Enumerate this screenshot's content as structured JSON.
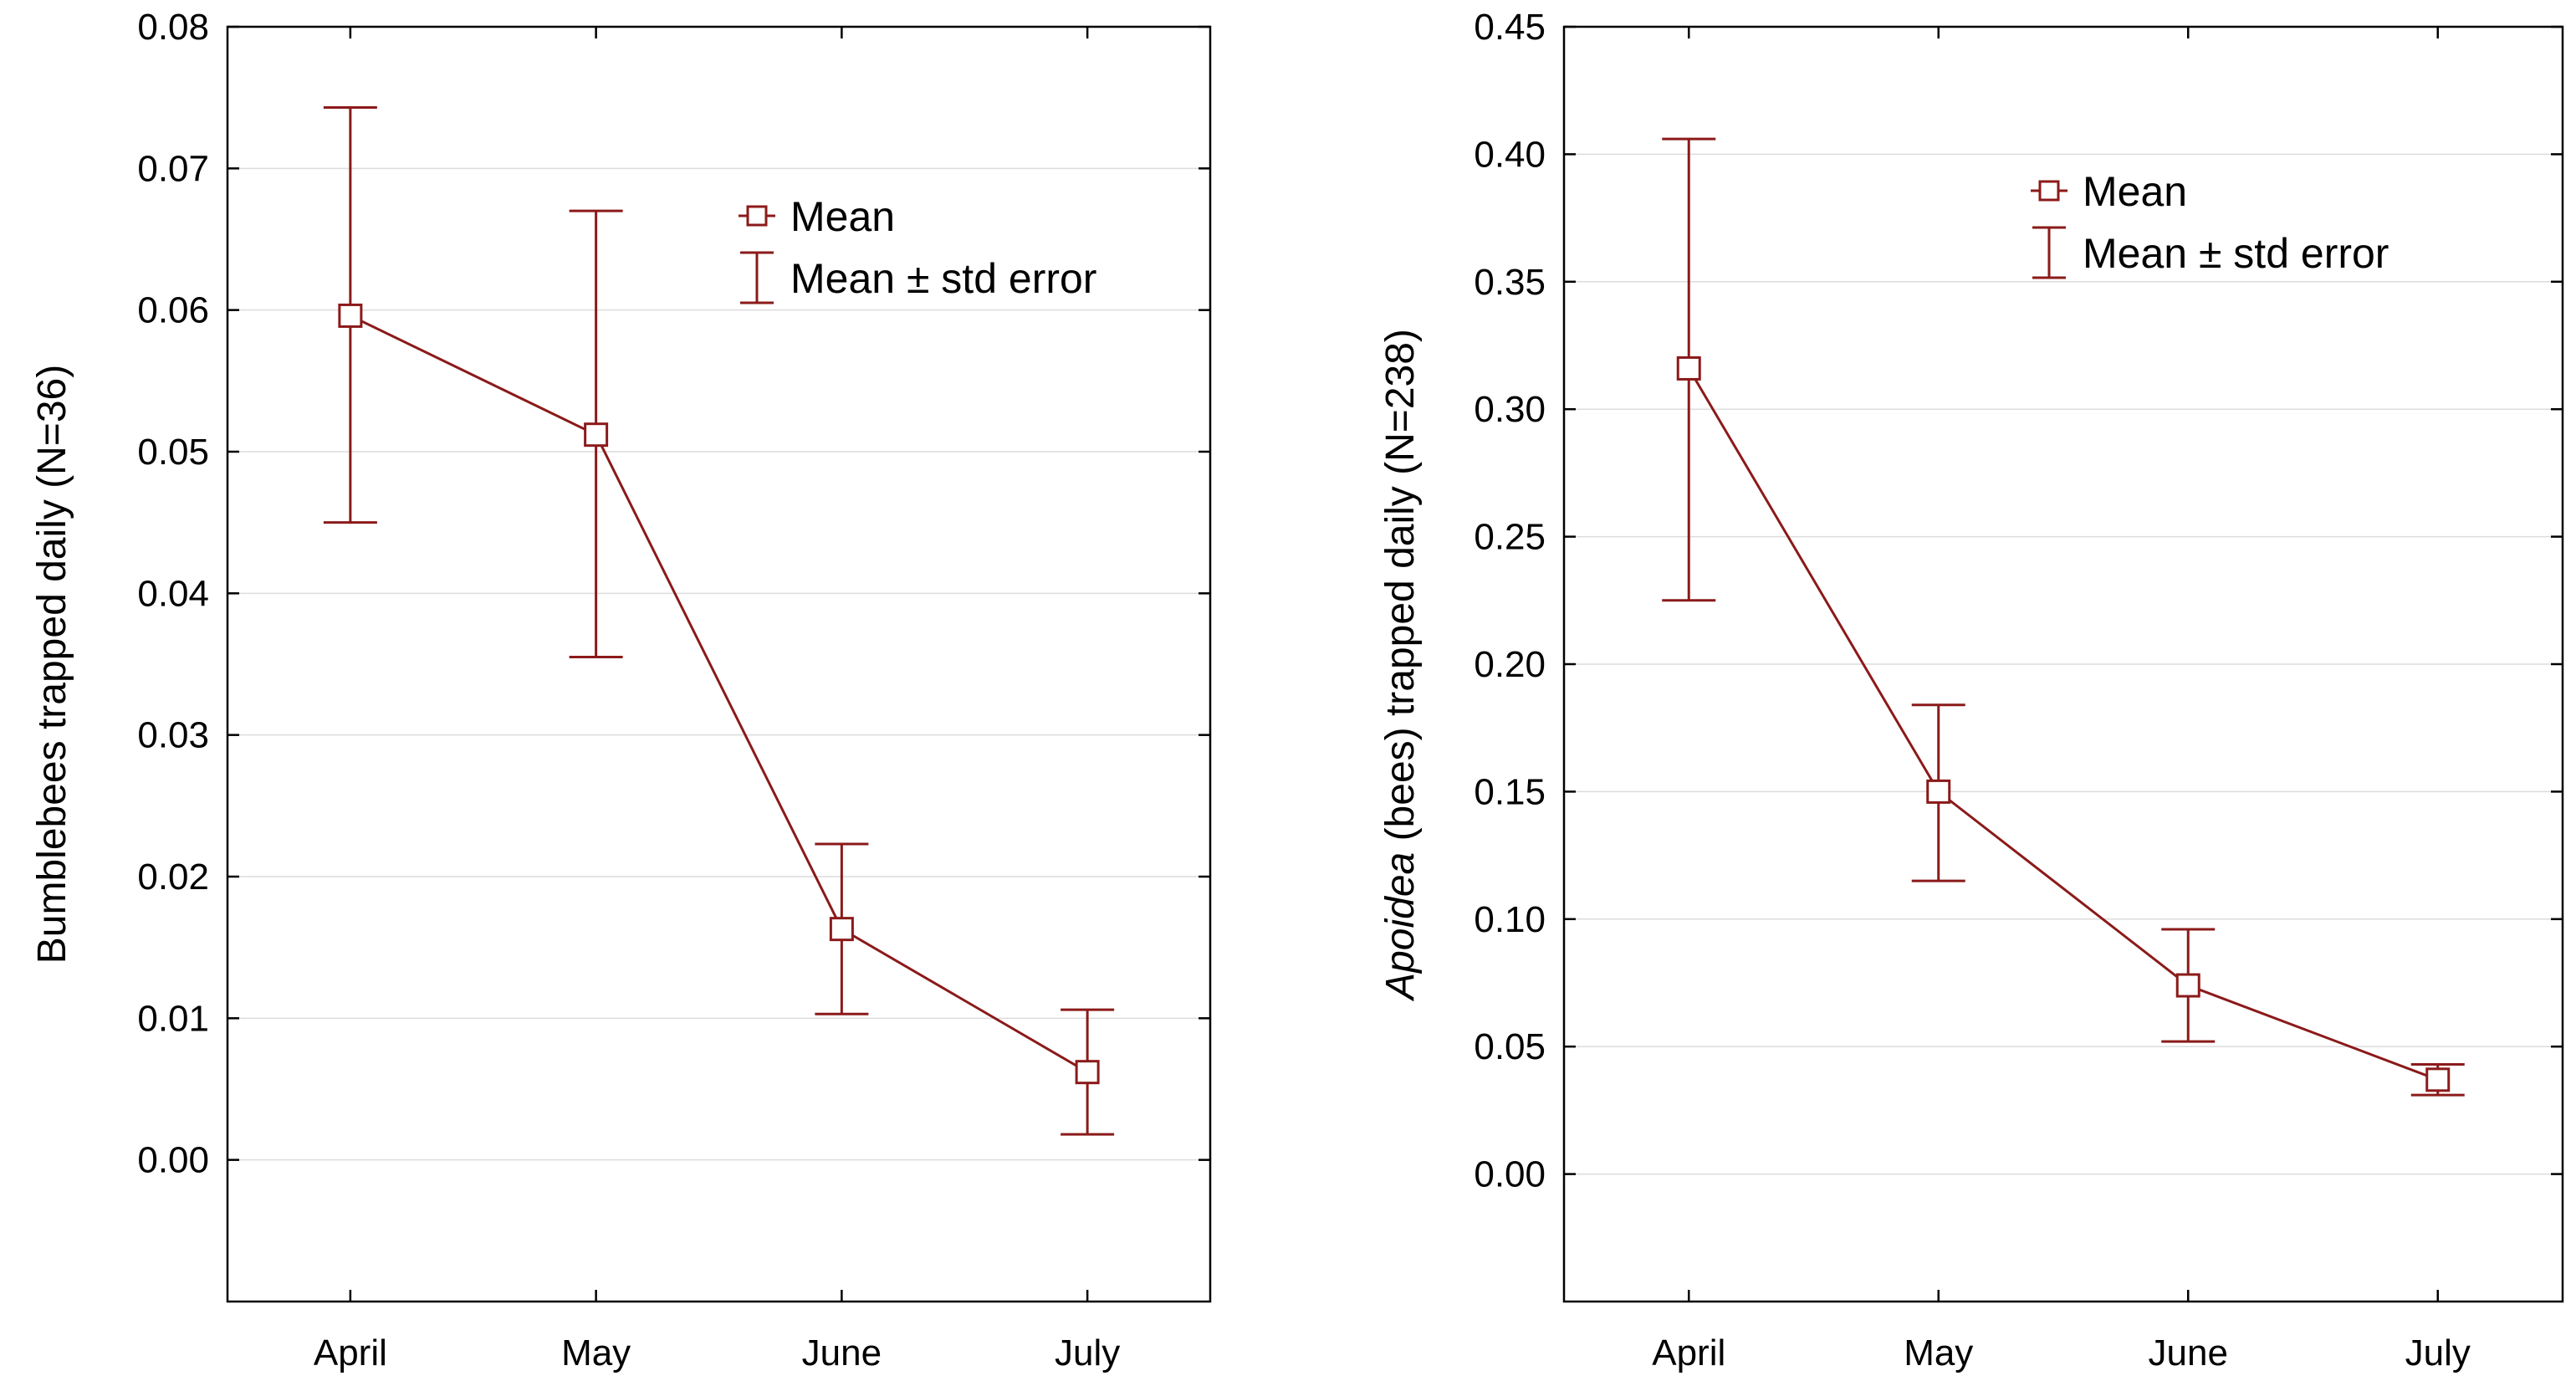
{
  "colors": {
    "series": "#8b1a1a",
    "grid": "#dcdcdc",
    "axis": "#000000"
  },
  "legend": {
    "mean_label": "Mean",
    "error_label": "Mean ± std error"
  },
  "chart_data": [
    {
      "type": "line",
      "categories": [
        "April",
        "May",
        "June",
        "July"
      ],
      "title": "",
      "xlabel": "",
      "ylabel": "Bumblebees trapped daily (N=36)",
      "ylim": [
        -0.01,
        0.08
      ],
      "yticks": [
        0.0,
        0.01,
        0.02,
        0.03,
        0.04,
        0.05,
        0.06,
        0.07,
        0.08
      ],
      "ytick_labels": [
        "0.00",
        "0.01",
        "0.02",
        "0.03",
        "0.04",
        "0.05",
        "0.06",
        "0.07",
        "0.08"
      ],
      "series": [
        {
          "name": "Mean",
          "values": [
            0.0596,
            0.0512,
            0.0163,
            0.0062
          ],
          "err_low": [
            0.045,
            0.0355,
            0.0103,
            0.0018
          ],
          "err_high": [
            0.0743,
            0.067,
            0.0223,
            0.0106
          ]
        }
      ],
      "legend_position": "top-right",
      "grid": true
    },
    {
      "type": "line",
      "categories": [
        "April",
        "May",
        "June",
        "July"
      ],
      "title": "",
      "xlabel": "",
      "ylabel_italic": "Apoidea",
      "ylabel": " (bees) trapped daily (N=238)",
      "ylim": [
        -0.05,
        0.45
      ],
      "yticks": [
        0.0,
        0.05,
        0.1,
        0.15,
        0.2,
        0.25,
        0.3,
        0.35,
        0.4,
        0.45
      ],
      "ytick_labels": [
        "0.00",
        "0.05",
        "0.10",
        "0.15",
        "0.20",
        "0.25",
        "0.30",
        "0.35",
        "0.40",
        "0.45"
      ],
      "series": [
        {
          "name": "Mean",
          "values": [
            0.316,
            0.15,
            0.074,
            0.037
          ],
          "err_low": [
            0.225,
            0.115,
            0.052,
            0.031
          ],
          "err_high": [
            0.406,
            0.184,
            0.096,
            0.043
          ]
        }
      ],
      "legend_position": "top-right",
      "grid": true
    }
  ]
}
